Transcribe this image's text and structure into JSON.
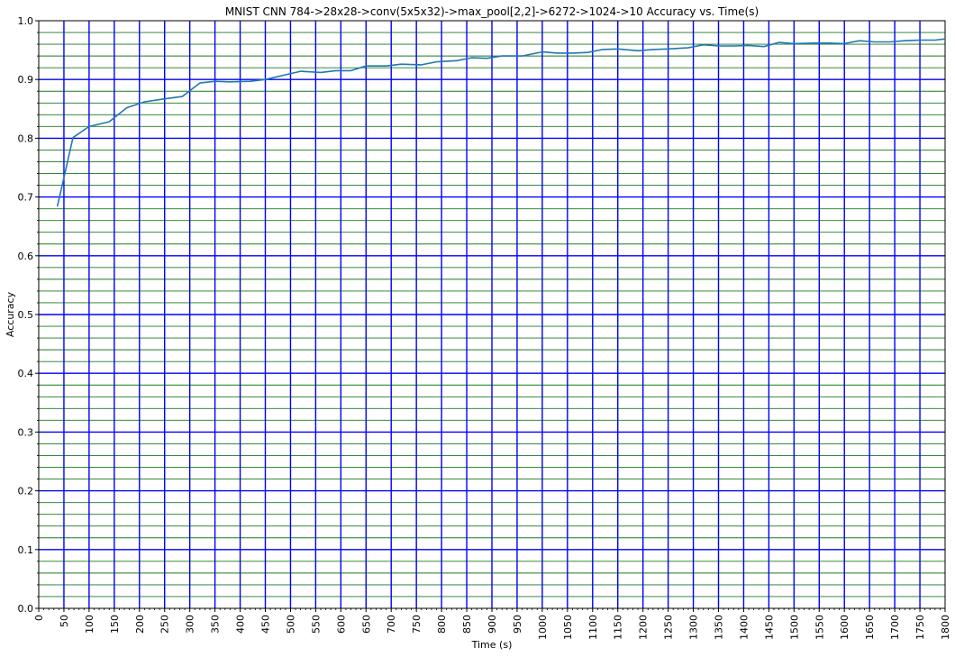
{
  "chart_data": {
    "type": "line",
    "title": "MNIST CNN 784->28x28->conv(5x5x32)->max_pool[2,2]->6272->1024->10 Accuracy vs. Time(s)",
    "xlabel": "Time (s)",
    "ylabel": "Accuracy",
    "xlim": [
      0,
      1800
    ],
    "ylim": [
      0,
      1.0
    ],
    "x_ticks": [
      "0",
      "50",
      "100",
      "150",
      "200",
      "250",
      "300",
      "350",
      "400",
      "450",
      "500",
      "550",
      "600",
      "650",
      "700",
      "750",
      "800",
      "850",
      "900",
      "950",
      "1000",
      "1050",
      "1100",
      "1150",
      "1200",
      "1250",
      "1300",
      "1350",
      "1400",
      "1450",
      "1500",
      "1550",
      "1600",
      "1650",
      "1700",
      "1750",
      "1800"
    ],
    "y_ticks": [
      "0.0",
      "0.1",
      "0.2",
      "0.3",
      "0.4",
      "0.5",
      "0.6",
      "0.7",
      "0.8",
      "0.9",
      "1.0"
    ],
    "grid": {
      "major": true,
      "minor": true,
      "major_color": "#0000ff",
      "minor_color": "#1a7a1a"
    },
    "line_color": "#1f77b4",
    "series": [
      {
        "x": [
          37,
          68,
          100,
          140,
          175,
          210,
          250,
          285,
          320,
          350,
          380,
          420,
          450,
          490,
          520,
          560,
          590,
          620,
          650,
          690,
          720,
          760,
          790,
          830,
          860,
          890,
          920,
          960,
          1000,
          1030,
          1060,
          1090,
          1120,
          1150,
          1190,
          1220,
          1250,
          1290,
          1320,
          1350,
          1380,
          1410,
          1440,
          1470,
          1500,
          1540,
          1570,
          1600,
          1630,
          1660,
          1690,
          1720,
          1750,
          1780,
          1800
        ],
        "values": [
          0.684,
          0.801,
          0.82,
          0.828,
          0.852,
          0.862,
          0.867,
          0.871,
          0.894,
          0.897,
          0.896,
          0.897,
          0.9,
          0.908,
          0.914,
          0.912,
          0.915,
          0.915,
          0.923,
          0.923,
          0.926,
          0.925,
          0.93,
          0.932,
          0.937,
          0.936,
          0.94,
          0.94,
          0.947,
          0.945,
          0.945,
          0.946,
          0.951,
          0.952,
          0.949,
          0.951,
          0.952,
          0.954,
          0.959,
          0.957,
          0.957,
          0.958,
          0.956,
          0.963,
          0.961,
          0.962,
          0.962,
          0.961,
          0.966,
          0.964,
          0.964,
          0.966,
          0.967,
          0.967,
          0.969
        ]
      }
    ]
  }
}
